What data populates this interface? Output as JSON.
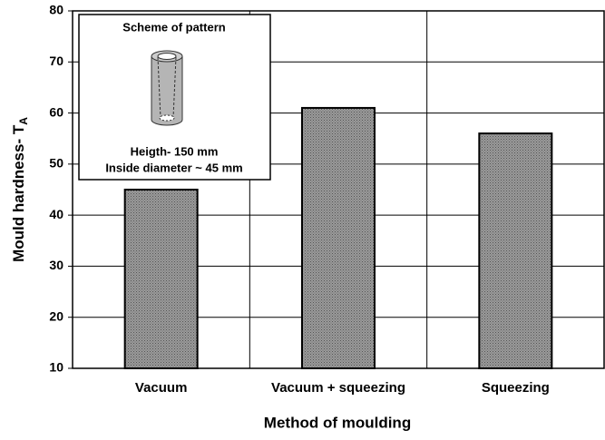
{
  "chart_data": {
    "type": "bar",
    "xlabel": "Method of moulding",
    "ylabel": "Mould hardness- T",
    "ylabel_subscript": "A",
    "categories": [
      "Vacuum",
      "Vacuum + squeezing",
      "Squeezing"
    ],
    "values": [
      45,
      61,
      56
    ],
    "color": "#8a8a8a",
    "ylim": [
      10,
      80
    ],
    "yticks": [
      10,
      20,
      30,
      40,
      50,
      60,
      70,
      80
    ],
    "grid": true,
    "inset": {
      "title": "Scheme of pattern",
      "lines": [
        "Heigth- 150 mm",
        "Inside diameter ~ 45 mm"
      ]
    }
  }
}
